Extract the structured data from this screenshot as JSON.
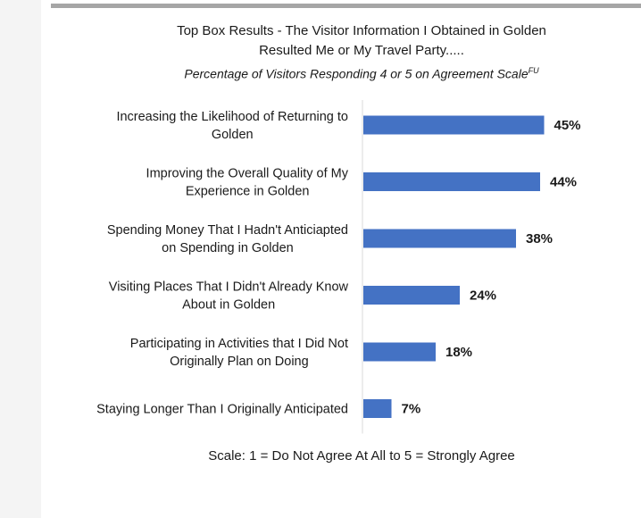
{
  "chart_data": {
    "type": "bar",
    "orientation": "horizontal",
    "title_line1": "Top Box Results  - The Visitor Information I Obtained in Golden",
    "title_line2": "Resulted Me or My Travel Party.....",
    "subtitle": "Percentage of Visitors Responding 4 or 5 on Agreement Scale",
    "subtitle_superscript": "FU",
    "categories": [
      [
        "Increasing the Likelihood of Returning to",
        "Golden"
      ],
      [
        "Improving the Overall Quality of My",
        "Experience in Golden"
      ],
      [
        "Spending Money That I Hadn't Anticiapted",
        "on Spending in Golden"
      ],
      [
        "Visiting Places That I Didn't Already Know",
        "About in Golden"
      ],
      [
        "Participating in Activities that I Did Not",
        "Originally Plan on Doing"
      ],
      [
        "Staying Longer Than I Originally Anticipated"
      ]
    ],
    "values": [
      45,
      44,
      38,
      24,
      18,
      7
    ],
    "value_labels": [
      "45%",
      "44%",
      "38%",
      "24%",
      "18%",
      "7%"
    ],
    "xlim": [
      0,
      100
    ],
    "bar_color": "#4472c4",
    "grid": false,
    "legend": "none",
    "footnote": "Scale: 1 = Do Not Agree At All to 5 = Strongly Agree"
  }
}
